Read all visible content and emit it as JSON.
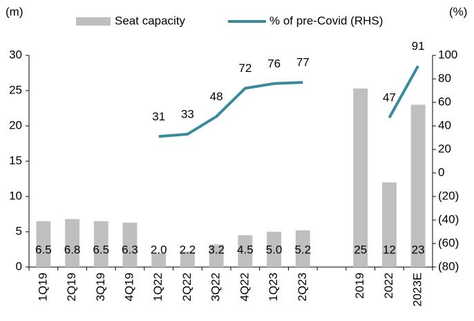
{
  "chart_data": {
    "type": "bar-line",
    "y_label": "(m)",
    "y2_label": "(%)",
    "categories": [
      "1Q19",
      "2Q19",
      "3Q19",
      "4Q19",
      "1Q22",
      "2Q22",
      "3Q22",
      "4Q22",
      "1Q23",
      "2Q23",
      null,
      "2019",
      "2022",
      "2023E"
    ],
    "series": [
      {
        "name": "Seat capacity",
        "type": "bar",
        "color": "#bfbfbf",
        "values": [
          6.5,
          6.8,
          6.5,
          6.3,
          2.0,
          2.2,
          3.2,
          4.5,
          5.0,
          5.2,
          null,
          25.3,
          12,
          23
        ],
        "value_labels": [
          "6.5",
          "6.8",
          "6.5",
          "6.3",
          "2.0",
          "2.2",
          "3.2",
          "4.5",
          "5.0",
          "5.2",
          null,
          "25",
          "12",
          "23"
        ]
      },
      {
        "name": "% of pre-Covid (RHS)",
        "type": "line",
        "axis": "y2",
        "color": "#3a8a9c",
        "values": [
          null,
          null,
          null,
          null,
          31,
          33,
          48,
          72,
          76,
          77,
          null,
          null,
          47,
          91
        ]
      }
    ],
    "ylim": [
      0,
      30
    ],
    "yticks": [
      0,
      5,
      10,
      15,
      20,
      25,
      30
    ],
    "y2lim": [
      -80,
      100
    ],
    "y2ticks": [
      {
        "value": -80,
        "label": "(80)"
      },
      {
        "value": -60,
        "label": "(60)"
      },
      {
        "value": -40,
        "label": "(40)"
      },
      {
        "value": -20,
        "label": "(20)"
      },
      0,
      20,
      40,
      60,
      80,
      100
    ],
    "legend": "top"
  }
}
